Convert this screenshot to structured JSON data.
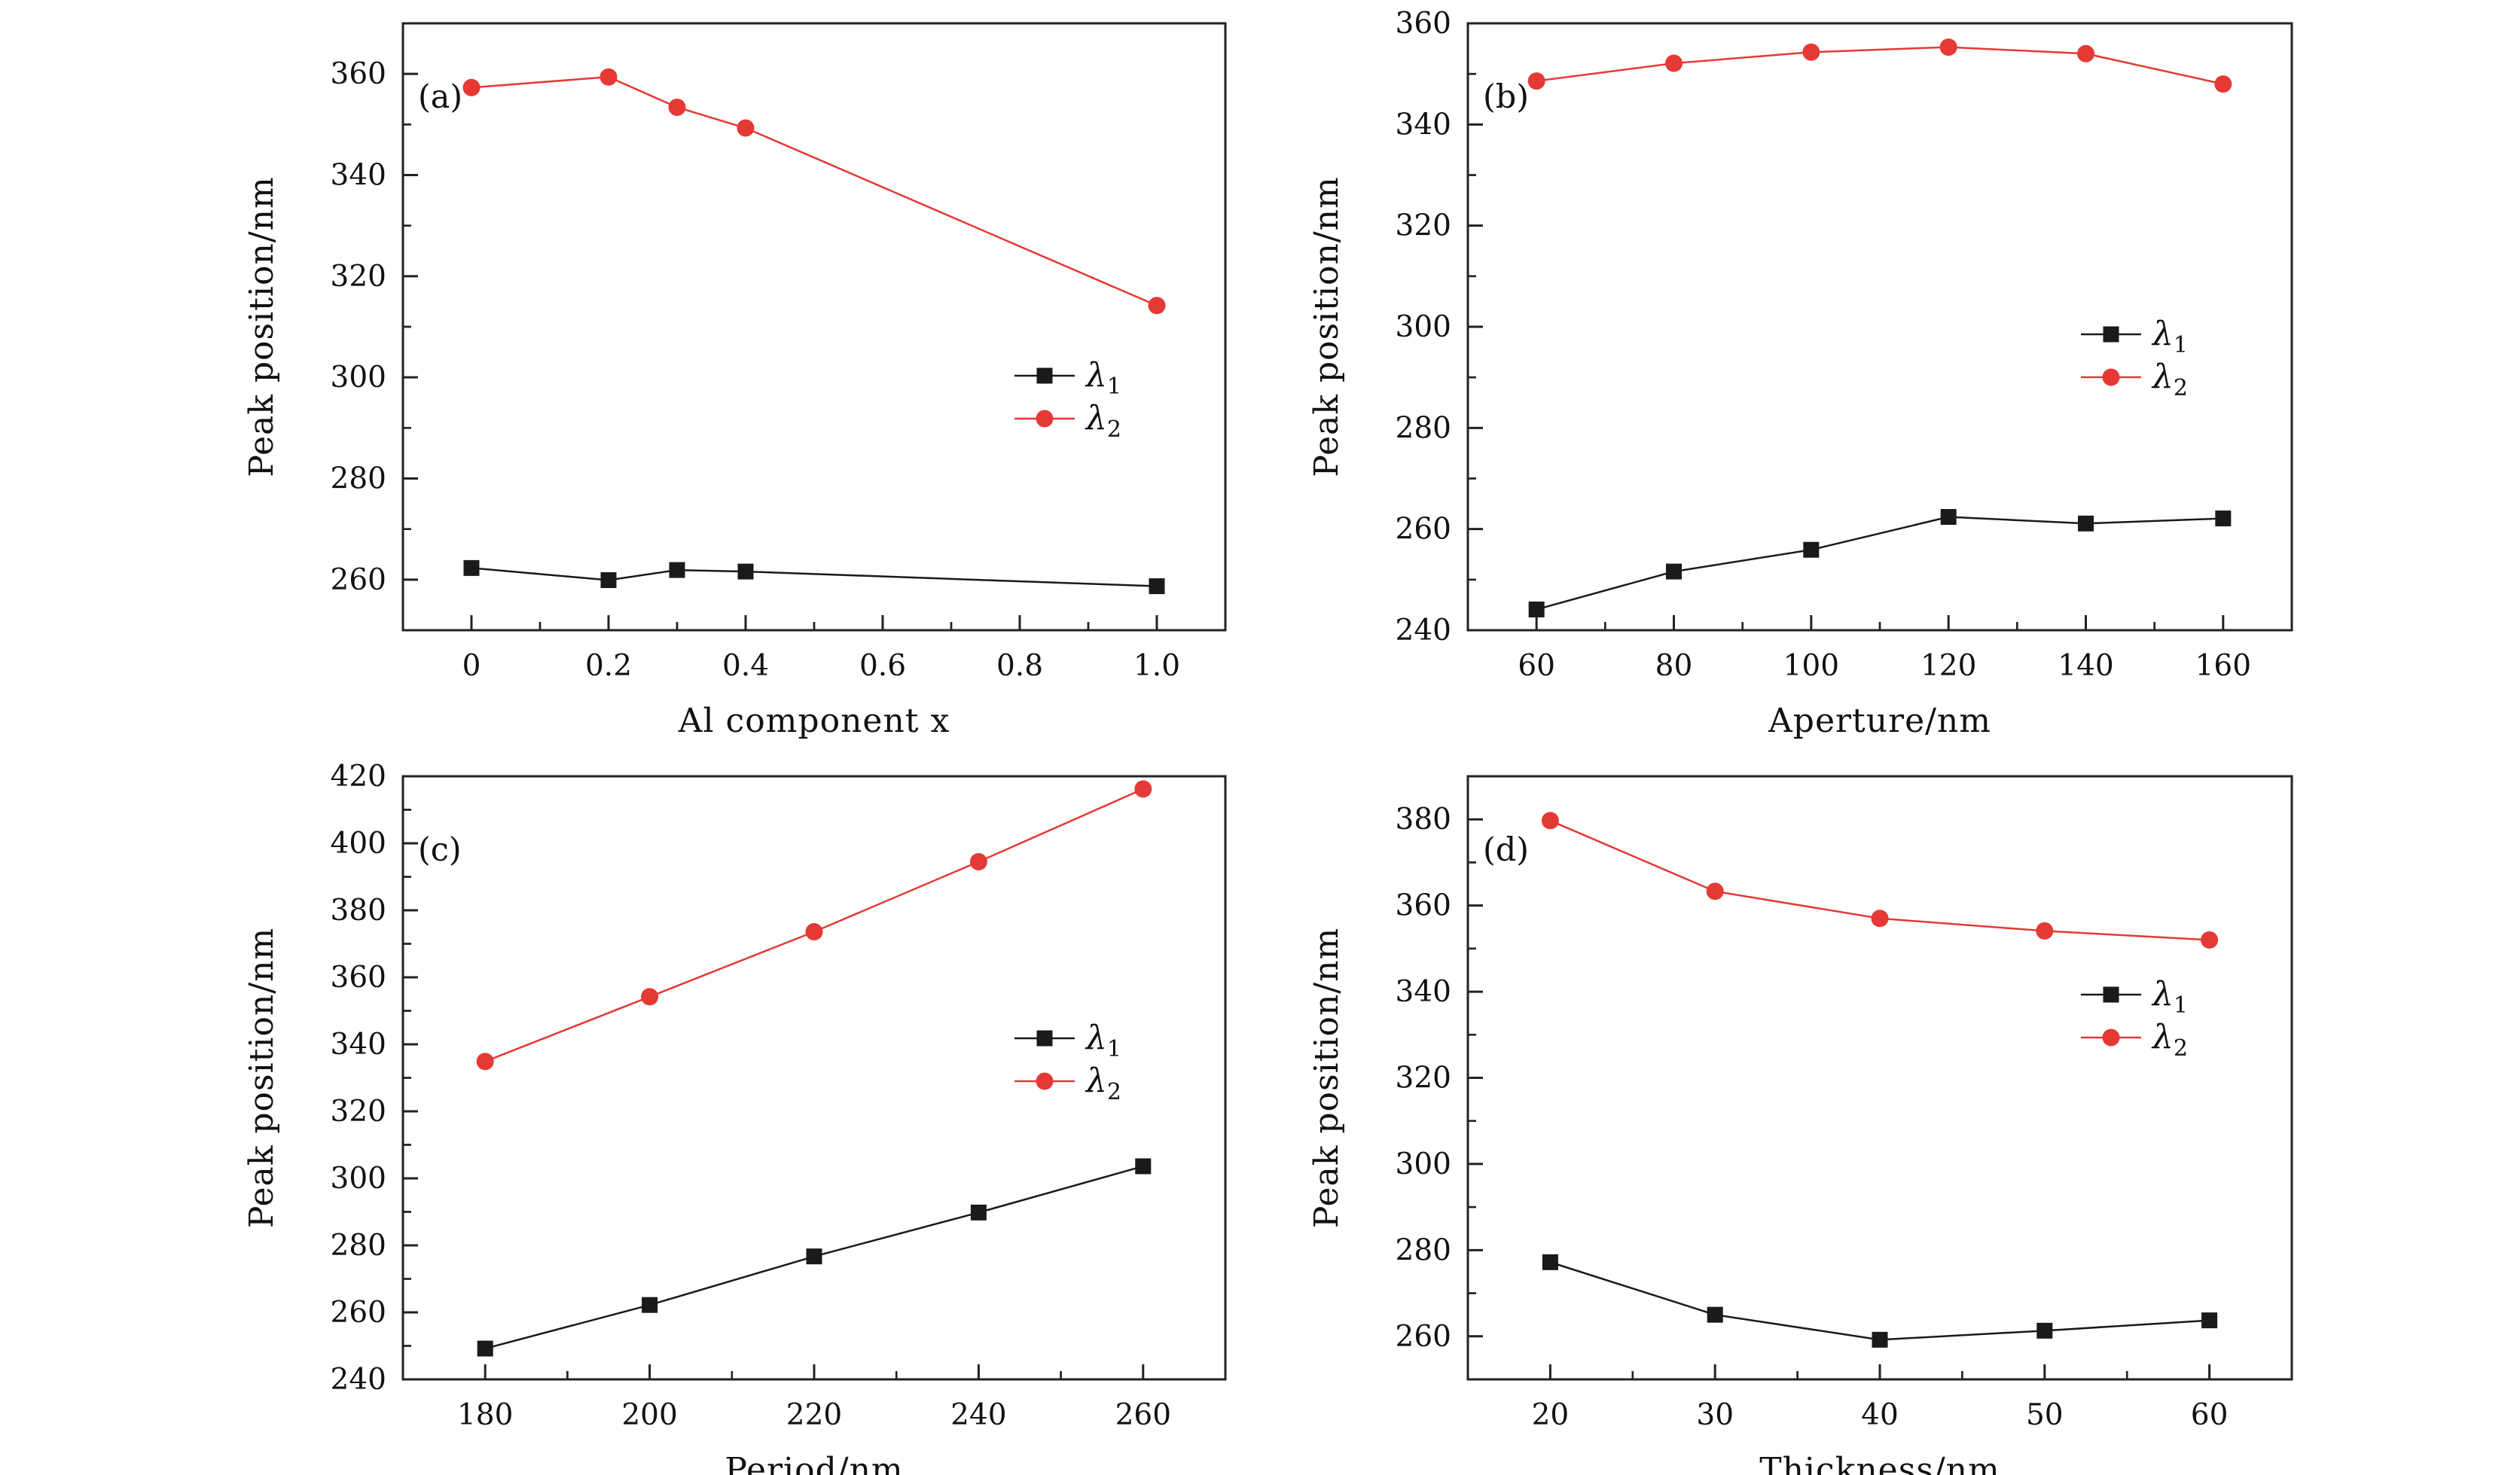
{
  "figure": {
    "series_names": [
      "λ1",
      "λ2"
    ],
    "colors": {
      "lambda1": "#1a1a1a",
      "lambda2": "#e53935",
      "axis": "#222222"
    }
  },
  "chart_data": [
    {
      "type": "line",
      "panel_label": "(a)",
      "xlabel": "Al component x",
      "ylabel": "Peak position/nm",
      "xlim": [
        -0.1,
        1.1
      ],
      "ylim": [
        250,
        370
      ],
      "xticks": [
        0,
        0.2,
        0.4,
        0.6,
        0.8,
        1.0
      ],
      "xtick_labels": [
        "0",
        "0.2",
        "0.4",
        "0.6",
        "0.8",
        "1.0"
      ],
      "yticks": [
        260,
        280,
        300,
        320,
        340,
        360
      ],
      "ytick_labels": [
        "260",
        "280",
        "300",
        "320",
        "340",
        "360"
      ],
      "legend_position": "right-middle",
      "series": [
        {
          "name": "λ1",
          "marker": "square",
          "x": [
            0,
            0.2,
            0.3,
            0.4,
            1.0
          ],
          "y": [
            262.3,
            259.9,
            261.9,
            261.6,
            258.7
          ]
        },
        {
          "name": "λ2",
          "marker": "circle",
          "x": [
            0,
            0.2,
            0.3,
            0.4,
            1.0
          ],
          "y": [
            357.3,
            359.4,
            353.4,
            349.3,
            314.2
          ]
        }
      ]
    },
    {
      "type": "line",
      "panel_label": "(b)",
      "xlabel": "Aperture/nm",
      "ylabel": "Peak position/nm",
      "xlim": [
        50,
        170
      ],
      "ylim": [
        240,
        360
      ],
      "xticks": [
        60,
        80,
        100,
        120,
        140,
        160
      ],
      "xtick_labels": [
        "60",
        "80",
        "100",
        "120",
        "140",
        "160"
      ],
      "yticks": [
        240,
        260,
        280,
        300,
        320,
        340,
        360
      ],
      "ytick_labels": [
        "240",
        "260",
        "280",
        "300",
        "320",
        "340",
        "360"
      ],
      "legend_position": "right-middle",
      "series": [
        {
          "name": "λ1",
          "marker": "square",
          "x": [
            60,
            80,
            100,
            120,
            140,
            160
          ],
          "y": [
            244.1,
            251.6,
            255.9,
            262.4,
            261.1,
            262.1
          ]
        },
        {
          "name": "λ2",
          "marker": "circle",
          "x": [
            60,
            80,
            100,
            120,
            140,
            160
          ],
          "y": [
            348.6,
            352.1,
            354.3,
            355.3,
            354.0,
            348.0
          ]
        }
      ]
    },
    {
      "type": "line",
      "panel_label": "(c)",
      "xlabel": "Period/nm",
      "ylabel": "Peak position/nm",
      "xlim": [
        170,
        270
      ],
      "ylim": [
        240,
        420
      ],
      "xticks": [
        180,
        200,
        220,
        240,
        260
      ],
      "xtick_labels": [
        "180",
        "200",
        "220",
        "240",
        "260"
      ],
      "yticks": [
        240,
        260,
        280,
        300,
        320,
        340,
        360,
        380,
        400,
        420
      ],
      "ytick_labels": [
        "240",
        "260",
        "280",
        "300",
        "320",
        "340",
        "360",
        "380",
        "400",
        "420"
      ],
      "legend_position": "right-middle",
      "series": [
        {
          "name": "λ1",
          "marker": "square",
          "x": [
            180,
            200,
            220,
            240,
            260
          ],
          "y": [
            249.2,
            262.2,
            276.7,
            289.8,
            303.6
          ]
        },
        {
          "name": "λ2",
          "marker": "circle",
          "x": [
            180,
            200,
            220,
            240,
            260
          ],
          "y": [
            334.9,
            354.2,
            373.6,
            394.5,
            416.2
          ]
        }
      ]
    },
    {
      "type": "line",
      "panel_label": "(d)",
      "xlabel": "Thickness/nm",
      "ylabel": "Peak position/nm",
      "xlim": [
        15,
        65
      ],
      "ylim": [
        250,
        390
      ],
      "xticks": [
        20,
        30,
        40,
        50,
        60
      ],
      "xtick_labels": [
        "20",
        "30",
        "40",
        "50",
        "60"
      ],
      "yticks": [
        260,
        280,
        300,
        320,
        340,
        360,
        380
      ],
      "ytick_labels": [
        "260",
        "280",
        "300",
        "320",
        "340",
        "360",
        "380"
      ],
      "legend_position": "right-middle",
      "series": [
        {
          "name": "λ1",
          "marker": "square",
          "x": [
            20,
            30,
            40,
            50,
            60
          ],
          "y": [
            277.2,
            265.0,
            259.2,
            261.3,
            263.7
          ]
        },
        {
          "name": "λ2",
          "marker": "circle",
          "x": [
            20,
            30,
            40,
            50,
            60
          ],
          "y": [
            379.7,
            363.3,
            357.0,
            354.1,
            352.0
          ]
        }
      ]
    }
  ]
}
